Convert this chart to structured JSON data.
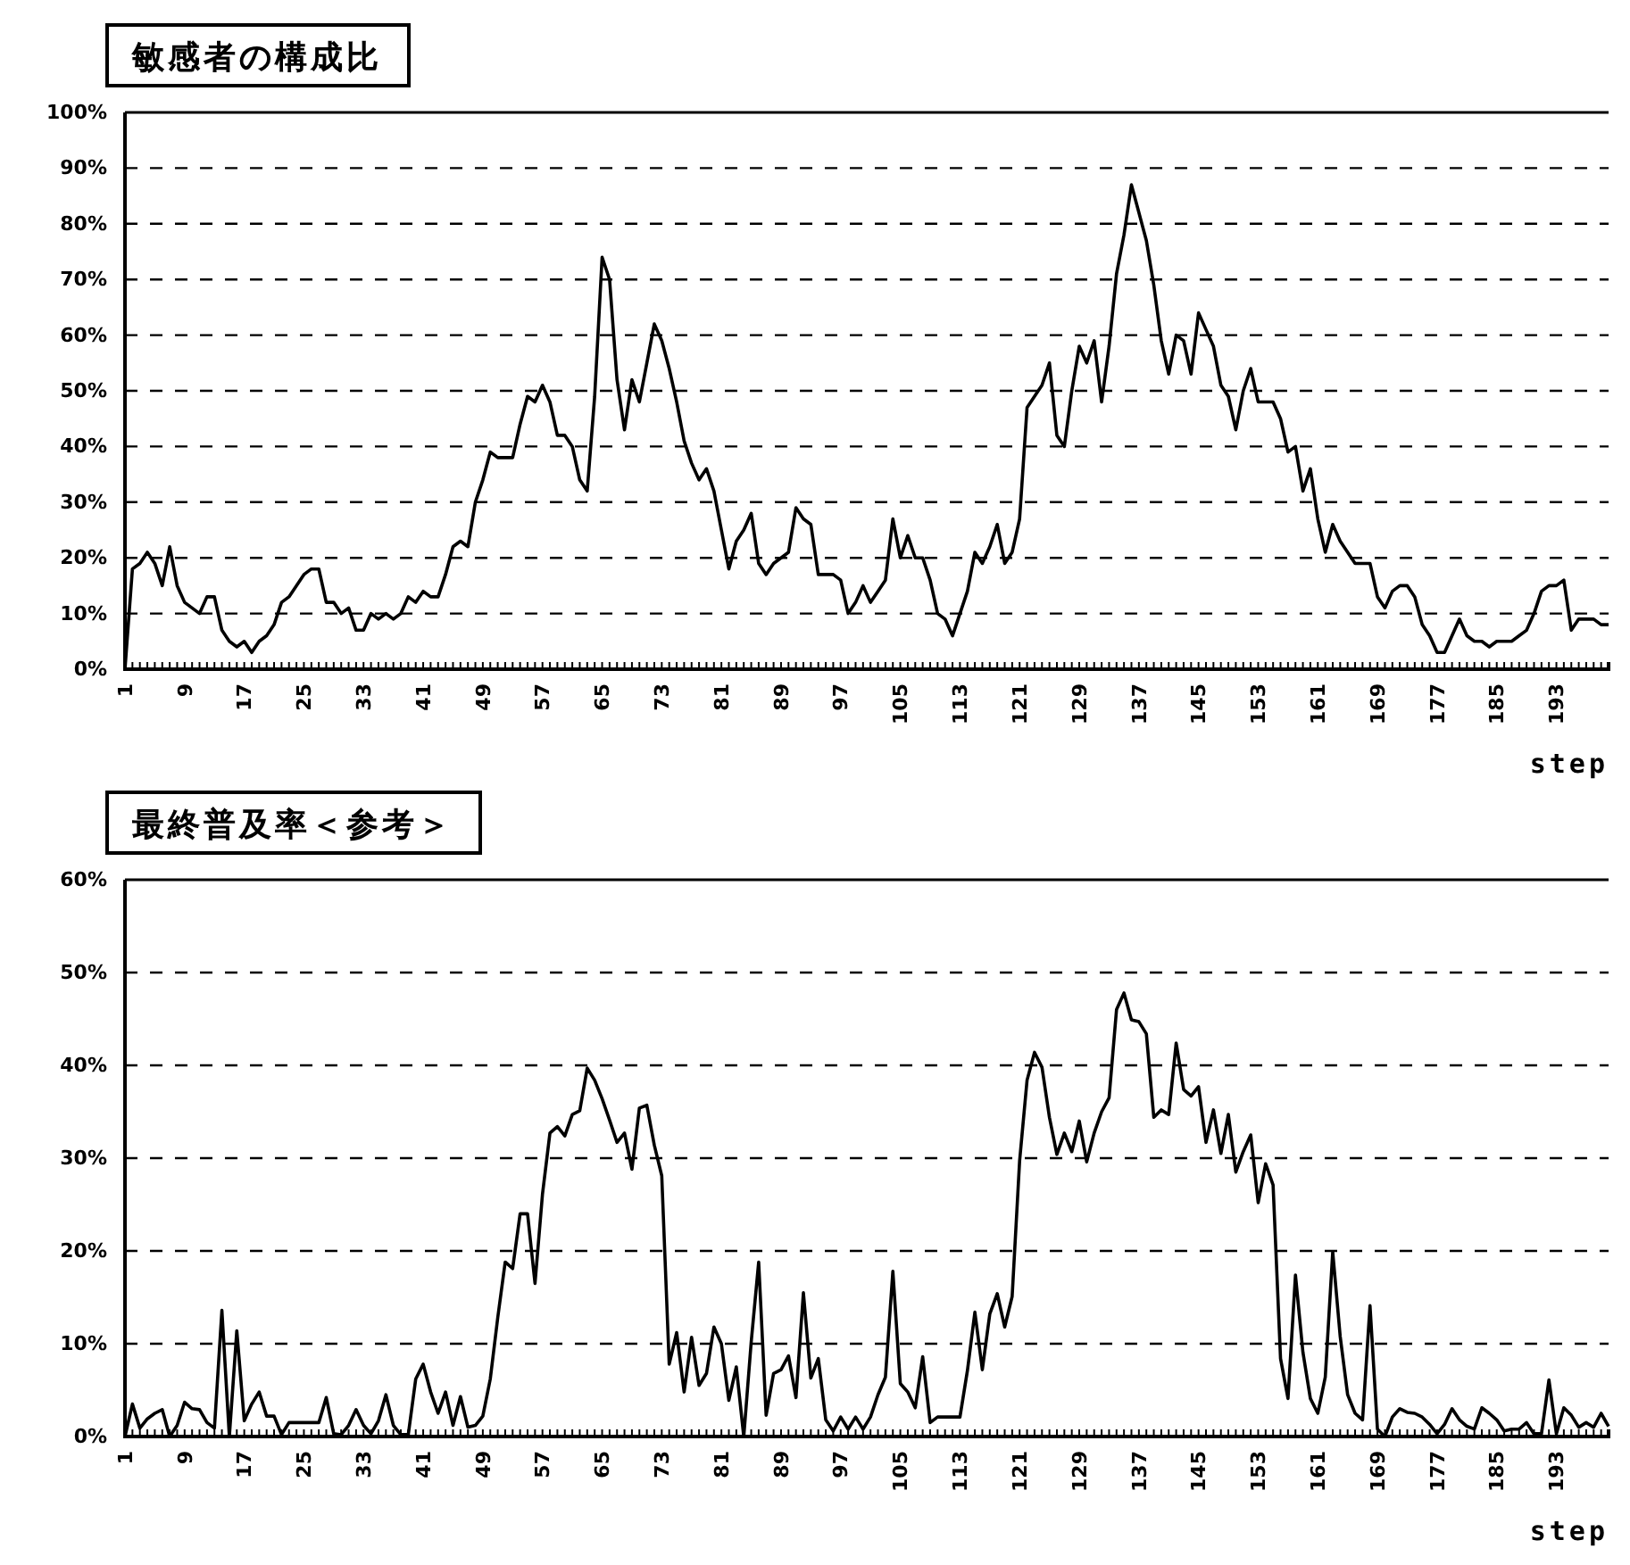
{
  "chart_data": [
    {
      "type": "line",
      "title": "敏感者の構成比",
      "xlabel": "step",
      "grid": "y",
      "line_style": "solid",
      "categories": [
        "1",
        null,
        null,
        null,
        null,
        null,
        null,
        null,
        "9",
        null,
        null,
        null,
        null,
        null,
        null,
        null,
        "17",
        null,
        null,
        null,
        null,
        null,
        null,
        null,
        "25",
        null,
        null,
        null,
        null,
        null,
        null,
        null,
        "33",
        null,
        null,
        null,
        null,
        null,
        null,
        null,
        "41",
        null,
        null,
        null,
        null,
        null,
        null,
        null,
        "49",
        null,
        null,
        null,
        null,
        null,
        null,
        null,
        "57",
        null,
        null,
        null,
        null,
        null,
        null,
        null,
        "65",
        null,
        null,
        null,
        null,
        null,
        null,
        null,
        "73",
        null,
        null,
        null,
        null,
        null,
        null,
        null,
        "81",
        null,
        null,
        null,
        null,
        null,
        null,
        null,
        "89",
        null,
        null,
        null,
        null,
        null,
        null,
        null,
        "97",
        null,
        null,
        null,
        null,
        null,
        null,
        null,
        "105",
        null,
        null,
        null,
        null,
        null,
        null,
        null,
        "113",
        null,
        null,
        null,
        null,
        null,
        null,
        null,
        "121",
        null,
        null,
        null,
        null,
        null,
        null,
        null,
        "129",
        null,
        null,
        null,
        null,
        null,
        null,
        null,
        "137",
        null,
        null,
        null,
        null,
        null,
        null,
        null,
        "145",
        null,
        null,
        null,
        null,
        null,
        null,
        null,
        "153",
        null,
        null,
        null,
        null,
        null,
        null,
        null,
        "161",
        null,
        null,
        null,
        null,
        null,
        null,
        null,
        "169",
        null,
        null,
        null,
        null,
        null,
        null,
        null,
        "177",
        null,
        null,
        null,
        null,
        null,
        null,
        null,
        "185",
        null,
        null,
        null,
        null,
        null,
        null,
        null,
        "193",
        null,
        null,
        null,
        null,
        null,
        null,
        null
      ],
      "series": [
        {
          "color": "#000000",
          "values": [
            0,
            18,
            19,
            21,
            19,
            15,
            22,
            15,
            12,
            11,
            10,
            13,
            13,
            7,
            5,
            4,
            5,
            3,
            5,
            6,
            8,
            12,
            13,
            15,
            17,
            18,
            18,
            12,
            12,
            10,
            11,
            7,
            7,
            10,
            9,
            10,
            9,
            10,
            13,
            12,
            14,
            13,
            13,
            17,
            22,
            23,
            22,
            30,
            34,
            39,
            38,
            38,
            38,
            44,
            49,
            48,
            51,
            48,
            42,
            42,
            40,
            34,
            32,
            49,
            74,
            70,
            52,
            43,
            52,
            48,
            55,
            62,
            59,
            54,
            48,
            41,
            37,
            34,
            36,
            32,
            25,
            18,
            23,
            25,
            28,
            19,
            17,
            19,
            20,
            21,
            29,
            27,
            26,
            17,
            17,
            17,
            16,
            10,
            12,
            15,
            12,
            14,
            16,
            27,
            20,
            24,
            20,
            20,
            16,
            10,
            9,
            6,
            10,
            14,
            21,
            19,
            22,
            26,
            19,
            21,
            27,
            47,
            49,
            51,
            55,
            42,
            40,
            50,
            58,
            55,
            59,
            48,
            58,
            71,
            78,
            87,
            82,
            77,
            69,
            59,
            53,
            60,
            59,
            53,
            64,
            61,
            58,
            51,
            49,
            43,
            50,
            54,
            48,
            48,
            48,
            45,
            39,
            40,
            32,
            36,
            27,
            21,
            26,
            23,
            21,
            19,
            19,
            19,
            13,
            11,
            14,
            15,
            15,
            13,
            8,
            6,
            3,
            3,
            6,
            9,
            6,
            5,
            5,
            4,
            5,
            5,
            5,
            6,
            7,
            10,
            14,
            15,
            15,
            16,
            7,
            9,
            9,
            9,
            8,
            8
          ]
        }
      ],
      "ylim": [
        0,
        100
      ],
      "yticks": [
        {
          "value": 0,
          "label": "0%"
        },
        {
          "value": 10,
          "label": "10%"
        },
        {
          "value": 20,
          "label": "20%"
        },
        {
          "value": 30,
          "label": "30%"
        },
        {
          "value": 40,
          "label": "40%"
        },
        {
          "value": 50,
          "label": "50%"
        },
        {
          "value": 60,
          "label": "60%"
        },
        {
          "value": 70,
          "label": "70%"
        },
        {
          "value": 80,
          "label": "80%"
        },
        {
          "value": 90,
          "label": "90%"
        },
        {
          "value": 100,
          "label": "100%"
        }
      ]
    },
    {
      "type": "line",
      "title": "最終普及率＜参考＞",
      "xlabel": "step",
      "grid": "y",
      "line_style": "solid",
      "categories": [
        "1",
        null,
        null,
        null,
        null,
        null,
        null,
        null,
        "9",
        null,
        null,
        null,
        null,
        null,
        null,
        null,
        "17",
        null,
        null,
        null,
        null,
        null,
        null,
        null,
        "25",
        null,
        null,
        null,
        null,
        null,
        null,
        null,
        "33",
        null,
        null,
        null,
        null,
        null,
        null,
        null,
        "41",
        null,
        null,
        null,
        null,
        null,
        null,
        null,
        "49",
        null,
        null,
        null,
        null,
        null,
        null,
        null,
        "57",
        null,
        null,
        null,
        null,
        null,
        null,
        null,
        "65",
        null,
        null,
        null,
        null,
        null,
        null,
        null,
        "73",
        null,
        null,
        null,
        null,
        null,
        null,
        null,
        "81",
        null,
        null,
        null,
        null,
        null,
        null,
        null,
        "89",
        null,
        null,
        null,
        null,
        null,
        null,
        null,
        "97",
        null,
        null,
        null,
        null,
        null,
        null,
        null,
        "105",
        null,
        null,
        null,
        null,
        null,
        null,
        null,
        "113",
        null,
        null,
        null,
        null,
        null,
        null,
        null,
        "121",
        null,
        null,
        null,
        null,
        null,
        null,
        null,
        "129",
        null,
        null,
        null,
        null,
        null,
        null,
        null,
        "137",
        null,
        null,
        null,
        null,
        null,
        null,
        null,
        "145",
        null,
        null,
        null,
        null,
        null,
        null,
        null,
        "153",
        null,
        null,
        null,
        null,
        null,
        null,
        null,
        "161",
        null,
        null,
        null,
        null,
        null,
        null,
        null,
        "169",
        null,
        null,
        null,
        null,
        null,
        null,
        null,
        "177",
        null,
        null,
        null,
        null,
        null,
        null,
        null,
        "185",
        null,
        null,
        null,
        null,
        null,
        null,
        null,
        "193",
        null,
        null,
        null,
        null,
        null,
        null,
        null
      ],
      "series": [
        {
          "color": "#000000",
          "values": [
            0,
            3.5,
            0.9,
            1.9,
            2.5,
            2.9,
            0,
            1.2,
            3.7,
            3,
            2.9,
            1.5,
            0.9,
            13.6,
            0,
            11.4,
            1.7,
            3.5,
            4.8,
            2.2,
            2.2,
            0.2,
            1.5,
            1.5,
            1.5,
            1.5,
            1.5,
            4.2,
            0.3,
            0.2,
            1.2,
            2.9,
            1.2,
            0.3,
            1.7,
            4.5,
            1.2,
            0.2,
            0.2,
            6.2,
            7.8,
            4.8,
            2.5,
            4.8,
            1.2,
            4.3,
            1,
            1.2,
            2.2,
            6.2,
            12.8,
            18.8,
            18.1,
            24,
            24,
            16.5,
            26.1,
            32.7,
            33.4,
            32.4,
            34.7,
            35.1,
            39.7,
            38.4,
            36.4,
            34.1,
            31.7,
            32.7,
            28.8,
            35.4,
            35.7,
            31.4,
            28.1,
            7.8,
            11.2,
            4.8,
            10.7,
            5.5,
            6.8,
            11.8,
            10,
            3.9,
            7.5,
            0,
            10.2,
            18.8,
            2.3,
            6.8,
            7.2,
            8.7,
            4.2,
            15.5,
            6.3,
            8.4,
            1.8,
            0.6,
            2.1,
            0.8,
            2.1,
            0.8,
            2.1,
            4.5,
            6.4,
            17.8,
            5.7,
            4.8,
            3.1,
            8.6,
            1.5,
            2.1,
            2.1,
            2.1,
            2.1,
            7.1,
            13.4,
            7.2,
            13.2,
            15.4,
            11.8,
            15.1,
            29.7,
            38.4,
            41.4,
            39.8,
            34.4,
            30.4,
            32.7,
            30.7,
            34,
            29.6,
            32.7,
            35,
            36.5,
            46,
            47.8,
            44.9,
            44.7,
            43.4,
            34.4,
            35.2,
            34.7,
            42.4,
            37.4,
            36.7,
            37.7,
            31.7,
            35.2,
            30.5,
            34.7,
            28.5,
            30.7,
            32.5,
            25.2,
            29.4,
            27.1,
            8.4,
            4.1,
            17.4,
            9.1,
            4.1,
            2.5,
            6.4,
            19.9,
            10.8,
            4.5,
            2.5,
            1.8,
            14.1,
            0.8,
            0,
            2.1,
            3,
            2.6,
            2.5,
            2.1,
            1.3,
            0.3,
            1.3,
            3,
            1.8,
            1.1,
            0.8,
            3.1,
            2.5,
            1.8,
            0.6,
            0.8,
            0.8,
            1.5,
            0.3,
            0.3,
            6.1,
            0.3,
            3.1,
            2.3,
            1,
            1.5,
            1,
            2.5,
            1.1
          ]
        }
      ],
      "ylim": [
        0,
        60
      ],
      "yticks": [
        {
          "value": 0,
          "label": "0%"
        },
        {
          "value": 10,
          "label": "10%"
        },
        {
          "value": 20,
          "label": "20%"
        },
        {
          "value": 30,
          "label": "30%"
        },
        {
          "value": 40,
          "label": "40%"
        },
        {
          "value": 50,
          "label": "50%"
        },
        {
          "value": 60,
          "label": "60%"
        }
      ]
    }
  ]
}
